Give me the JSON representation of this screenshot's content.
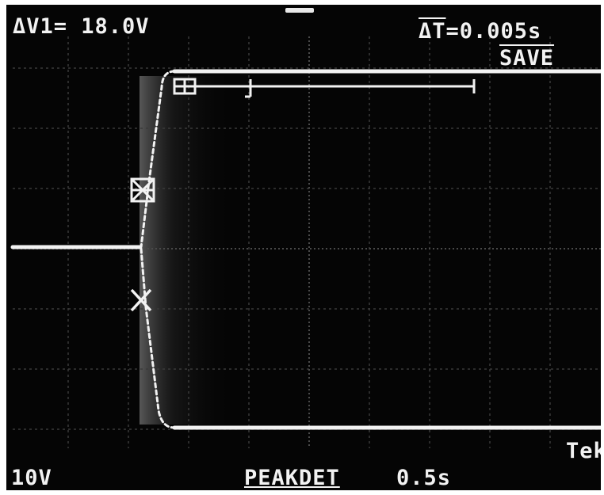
{
  "scope": {
    "cursor_delta_v": "ΔV1= 18.0V",
    "delta_t_symbol": "ΔT",
    "delta_t_value": "=0.005s",
    "mode_status": "SAVE",
    "channel_scale": "10V",
    "acquisition_mode": "PEAKDET",
    "timebase": "0.5s",
    "brand_partial": "Tek"
  },
  "colors": {
    "screen": "#050505",
    "trace": "#f2f2f2",
    "graticule": "#3a3a3a"
  }
}
